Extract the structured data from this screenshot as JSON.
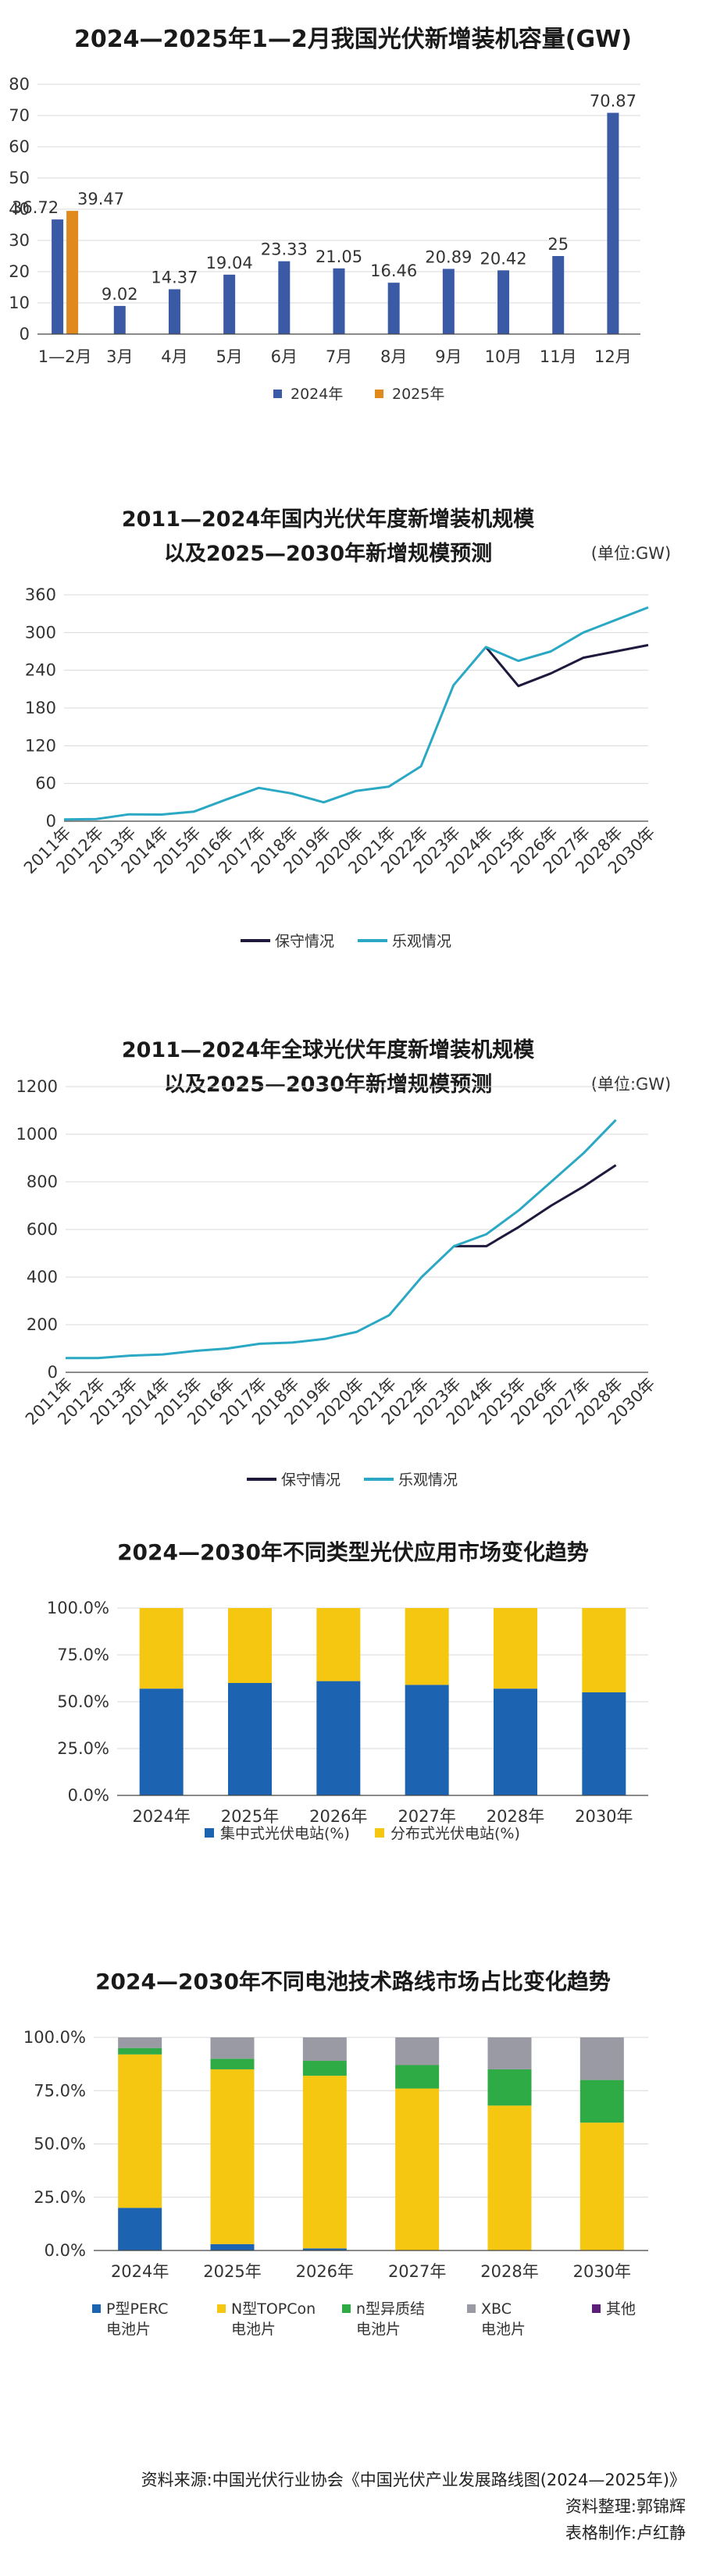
{
  "chart_data": [
    {
      "type": "bar",
      "title": "2024—2025年1—2月我国光伏新增装机容量(GW)",
      "categories": [
        "1—2月",
        "3月",
        "4月",
        "5月",
        "6月",
        "7月",
        "8月",
        "9月",
        "10月",
        "11月",
        "12月"
      ],
      "series": [
        {
          "name": "2024年",
          "values": [
            36.72,
            9.02,
            14.37,
            19.04,
            23.33,
            21.05,
            16.46,
            20.89,
            20.42,
            25,
            70.87
          ]
        },
        {
          "name": "2025年",
          "values": [
            39.47,
            null,
            null,
            null,
            null,
            null,
            null,
            null,
            null,
            null,
            null
          ]
        }
      ],
      "yticks": [
        "0",
        "10",
        "20",
        "30",
        "40",
        "50",
        "60",
        "70",
        "80"
      ],
      "ylim": [
        0,
        80
      ],
      "grid": true,
      "legend": "bottom",
      "colors": {
        "2024年": "#3b5aa6",
        "2025年": "#e08a1e"
      }
    },
    {
      "type": "line",
      "title": [
        "2011—2024年国内光伏年度新增装机规模",
        "以及2025—2030年新增规模预测"
      ],
      "unit": "(单位:GW)",
      "x": [
        "2011年",
        "2012年",
        "2013年",
        "2014年",
        "2015年",
        "2016年",
        "2017年",
        "2018年",
        "2019年",
        "2020年",
        "2021年",
        "2022年",
        "2023年",
        "2024年",
        "2025年",
        "2026年",
        "2027年",
        "2028年",
        "2030年"
      ],
      "series": [
        {
          "name": "保守情况",
          "values": [
            null,
            null,
            null,
            null,
            null,
            null,
            null,
            null,
            null,
            null,
            null,
            null,
            null,
            277,
            215,
            235,
            260,
            270,
            280
          ]
        },
        {
          "name": "乐观情况",
          "values": [
            2.7,
            3.5,
            10.95,
            10.6,
            15.1,
            34.5,
            53,
            44.3,
            30.1,
            48.2,
            54.9,
            87.4,
            216.3,
            277,
            255,
            270,
            300,
            320,
            340
          ]
        }
      ],
      "yticks": [
        "0",
        "60",
        "120",
        "180",
        "240",
        "300",
        "360"
      ],
      "ylim": [
        0,
        360
      ],
      "grid": true,
      "legend": "bottom",
      "colors": {
        "保守情况": "#1f1a3d",
        "乐观情况": "#2aa8c4"
      }
    },
    {
      "type": "line",
      "title": [
        "2011—2024年全球光伏年度新增装机规模",
        "以及2025—2030年新增规模预测"
      ],
      "unit": "(单位:GW)",
      "x": [
        "2011年",
        "2012年",
        "2013年",
        "2014年",
        "2015年",
        "2016年",
        "2017年",
        "2018年",
        "2019年",
        "2020年",
        "2021年",
        "2022年",
        "2023年",
        "2024年",
        "2025年",
        "2026年",
        "2027年",
        "2028年",
        "2030年"
      ],
      "series": [
        {
          "name": "保守情况",
          "values": [
            null,
            null,
            null,
            null,
            null,
            null,
            null,
            null,
            null,
            null,
            null,
            null,
            530,
            530,
            610,
            700,
            780,
            870,
            null
          ]
        },
        {
          "name": "乐观情况",
          "values": [
            60,
            60,
            70,
            75,
            90,
            100,
            120,
            125,
            140,
            170,
            240,
            400,
            530,
            580,
            680,
            800,
            920,
            1060,
            null
          ]
        }
      ],
      "yticks": [
        "0",
        "200",
        "400",
        "600",
        "800",
        "1000",
        "1200"
      ],
      "ylim": [
        0,
        1200
      ],
      "grid": true,
      "legend": "bottom",
      "colors": {
        "保守情况": "#1f1a3d",
        "乐观情况": "#2aa8c4"
      }
    },
    {
      "type": "bar",
      "stacked": true,
      "title": "2024—2030年不同类型光伏应用市场变化趋势",
      "categories": [
        "2024年",
        "2025年",
        "2026年",
        "2027年",
        "2028年",
        "2030年"
      ],
      "series": [
        {
          "name": "集中式光伏电站(%)",
          "values": [
            57,
            60,
            61,
            59,
            57,
            55
          ]
        },
        {
          "name": "分布式光伏电站(%)",
          "values": [
            43,
            40,
            39,
            41,
            43,
            45
          ]
        }
      ],
      "yticks": [
        "0.0%",
        "25.0%",
        "50.0%",
        "75.0%",
        "100.0%"
      ],
      "ylim": [
        0,
        100
      ],
      "grid": true,
      "legend": "bottom",
      "colors": {
        "集中式光伏电站(%)": "#1c63b1",
        "分布式光伏电站(%)": "#f5c710"
      }
    },
    {
      "type": "bar",
      "stacked": true,
      "title": "2024—2030年不同电池技术路线市场占比变化趋势",
      "categories": [
        "2024年",
        "2025年",
        "2026年",
        "2027年",
        "2028年",
        "2030年"
      ],
      "series": [
        {
          "name": "P型PERC电池片",
          "values": [
            20,
            3,
            1,
            0,
            0,
            0
          ]
        },
        {
          "name": "N型TOPCon电池片",
          "values": [
            72,
            82,
            81,
            76,
            68,
            60
          ]
        },
        {
          "name": "n型异质结电池片",
          "values": [
            3,
            5,
            7,
            11,
            17,
            20
          ]
        },
        {
          "name": "XBC电池片",
          "values": [
            5,
            10,
            11,
            13,
            15,
            20
          ]
        },
        {
          "name": "其他",
          "values": [
            0,
            0,
            0,
            0,
            0,
            0
          ]
        }
      ],
      "legend_labels": [
        [
          "P型PERC",
          "电池片"
        ],
        [
          "N型TOPCon",
          "电池片"
        ],
        [
          "n型异质结",
          "电池片"
        ],
        [
          "XBC",
          "电池片"
        ],
        [
          "其他",
          ""
        ]
      ],
      "yticks": [
        "0.0%",
        "25.0%",
        "50.0%",
        "75.0%",
        "100.0%"
      ],
      "ylim": [
        0,
        100
      ],
      "grid": true,
      "legend": "bottom",
      "colors": {
        "P型PERC电池片": "#1c63b1",
        "N型TOPCon电池片": "#f5c710",
        "n型异质结电池片": "#2fab45",
        "XBC电池片": "#9a9aa5",
        "其他": "#5b1f7a"
      }
    }
  ],
  "footer": {
    "source": "资料来源:中国光伏行业协会《中国光伏产业发展路线图(2024—2025年)》",
    "editor": "资料整理:郭锦辉",
    "maker": "表格制作:卢红静"
  }
}
